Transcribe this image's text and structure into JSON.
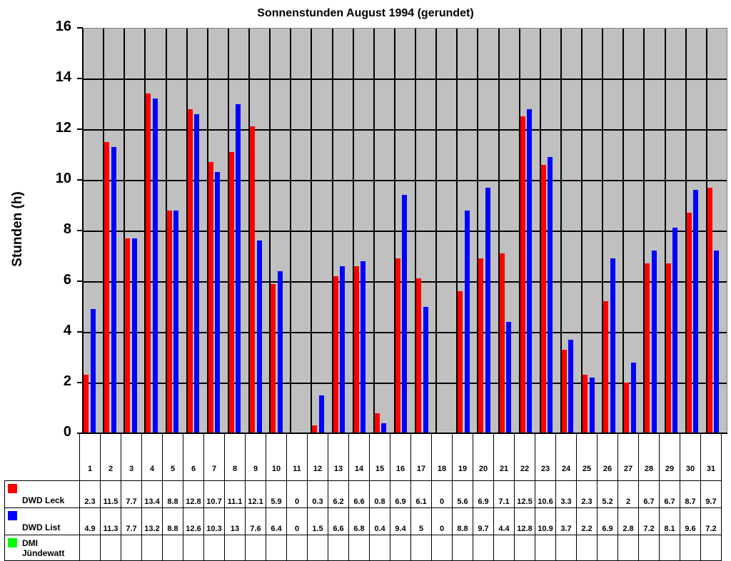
{
  "chart_data": {
    "type": "bar",
    "title": "Sonnenstunden August 1994 (gerundet)",
    "xlabel": "",
    "ylabel": "Stunden (h)",
    "ylim": [
      0,
      16
    ],
    "yticks": [
      0,
      2,
      4,
      6,
      8,
      10,
      12,
      14,
      16
    ],
    "grid": true,
    "legend_position": "data-table",
    "categories": [
      "1",
      "2",
      "3",
      "4",
      "5",
      "6",
      "7",
      "8",
      "9",
      "10",
      "11",
      "12",
      "13",
      "14",
      "15",
      "16",
      "17",
      "18",
      "19",
      "20",
      "21",
      "22",
      "23",
      "24",
      "25",
      "26",
      "27",
      "28",
      "29",
      "30",
      "31"
    ],
    "series": [
      {
        "name": "DWD Leck",
        "color": "#ff0000",
        "values": [
          2.3,
          11.5,
          7.7,
          13.4,
          8.8,
          12.8,
          10.7,
          11.1,
          12.1,
          5.9,
          0,
          0.3,
          6.2,
          6.6,
          0.8,
          6.9,
          6.1,
          0,
          5.6,
          6.9,
          7.1,
          12.5,
          10.6,
          3.3,
          2.3,
          5.2,
          2,
          6.7,
          6.7,
          8.7,
          9.7
        ]
      },
      {
        "name": "DWD List",
        "color": "#0000ff",
        "values": [
          4.9,
          11.3,
          7.7,
          13.2,
          8.8,
          12.6,
          10.3,
          13,
          7.6,
          6.4,
          0,
          1.5,
          6.6,
          6.8,
          0.4,
          9.4,
          5,
          0,
          8.8,
          9.7,
          4.4,
          12.8,
          10.9,
          3.7,
          2.2,
          6.9,
          2.8,
          7.2,
          8.1,
          9.6,
          7.2
        ]
      },
      {
        "name": "DMI Jündewatt",
        "color": "#00ff00",
        "values": [
          null,
          null,
          null,
          null,
          null,
          null,
          null,
          null,
          null,
          null,
          null,
          null,
          null,
          null,
          null,
          null,
          null,
          null,
          null,
          null,
          null,
          null,
          null,
          null,
          null,
          null,
          null,
          null,
          null,
          null,
          null
        ]
      }
    ]
  },
  "colors": {
    "plot_bg": "#c0c0c0",
    "grid": "#000000"
  }
}
